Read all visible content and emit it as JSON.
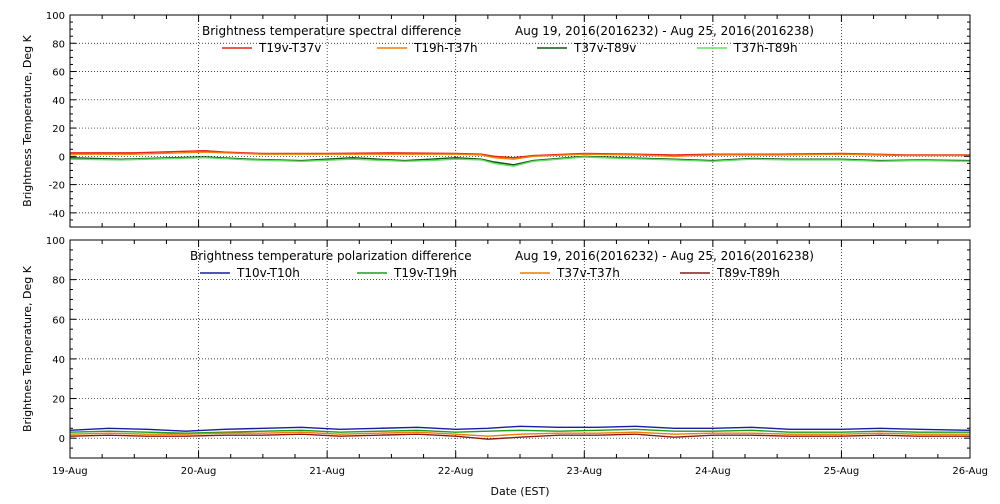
{
  "chart_data": [
    {
      "type": "line",
      "title": "Brightness temperature spectral difference",
      "subtitle": "Aug 19, 2016(2016232) - Aug 25, 2016(2016238)",
      "ylabel": "Brightness Temperature, Deg K",
      "xlabel": "",
      "ylim": [
        -50,
        100
      ],
      "yticks": [
        -40,
        -20,
        0,
        20,
        40,
        60,
        80,
        100
      ],
      "xlim": [
        0,
        7
      ],
      "grid": true,
      "legend": "top",
      "x_ticks": [
        0,
        1,
        2,
        3,
        4,
        5,
        6,
        7
      ],
      "x_tick_labels": [
        "",
        "",
        "",
        "",
        "",
        "",
        "",
        ""
      ],
      "series": [
        {
          "name": "T19v-T37v",
          "color": "#e8221b",
          "x": [
            0,
            0.5,
            1.05,
            1.2,
            1.5,
            2.0,
            2.5,
            3.0,
            3.2,
            3.3,
            3.45,
            3.6,
            4.0,
            4.4,
            4.7,
            5.0,
            5.5,
            6.0,
            6.5,
            7.0
          ],
          "y": [
            2.5,
            2.5,
            4,
            3,
            2,
            2,
            2.5,
            2,
            1.5,
            0,
            -1,
            0.5,
            2,
            1.5,
            1,
            1.5,
            1.5,
            2,
            1,
            1
          ]
        },
        {
          "name": "T19h-T37h",
          "color": "#f07d00",
          "x": [
            0,
            0.5,
            1.05,
            1.5,
            2.0,
            2.5,
            3.0,
            3.2,
            3.3,
            3.45,
            3.6,
            4.0,
            4.4,
            4.7,
            5.0,
            5.5,
            6.0,
            6.5,
            7.0
          ],
          "y": [
            1.5,
            1.5,
            3,
            1.5,
            1.5,
            1.5,
            1.5,
            1,
            -1,
            -2,
            0,
            1.5,
            1,
            0,
            1,
            1,
            1.5,
            0.5,
            0.5
          ]
        },
        {
          "name": "T37v-T89v",
          "color": "#0a5a0a",
          "x": [
            0,
            0.4,
            0.8,
            1.05,
            1.4,
            1.8,
            2.2,
            2.6,
            2.8,
            3.0,
            3.2,
            3.3,
            3.45,
            3.6,
            4.0,
            4.3,
            4.7,
            5.0,
            5.3,
            5.6,
            6.0,
            6.3,
            6.6,
            7.0
          ],
          "y": [
            -1,
            -2,
            -1,
            -0.5,
            -2,
            -3,
            -1,
            -3,
            -2,
            -1,
            -2,
            -4,
            -6,
            -3,
            0,
            -1,
            -2,
            -3,
            -1.5,
            -2,
            -2,
            -3,
            -2.5,
            -3
          ]
        },
        {
          "name": "T37h-T89h",
          "color": "#66dd66",
          "x": [
            0,
            0.4,
            0.8,
            1.05,
            1.4,
            1.8,
            2.2,
            2.6,
            2.8,
            3.0,
            3.2,
            3.3,
            3.45,
            3.6,
            4.0,
            4.3,
            4.7,
            5.0,
            5.3,
            5.6,
            6.0,
            6.3,
            6.6,
            7.0
          ],
          "y": [
            -2,
            -2.5,
            -1.5,
            -1,
            -2.5,
            -3.5,
            -2,
            -3.5,
            -3,
            -2,
            -2.5,
            -5,
            -7,
            -3.5,
            -0.5,
            -1.5,
            -2.5,
            -3.5,
            -2,
            -2.5,
            -2.5,
            -3.5,
            -3,
            -3.5
          ]
        }
      ]
    },
    {
      "type": "line",
      "title": "Brightness temperature polarization difference",
      "subtitle": "Aug 19, 2016(2016232) - Aug 25, 2016(2016238)",
      "ylabel": "Brightnes Temperature, Deg K",
      "xlabel": "Date (EST)",
      "ylim": [
        -10,
        100
      ],
      "yticks": [
        0,
        20,
        40,
        60,
        80,
        100
      ],
      "xlim": [
        0,
        7
      ],
      "grid": true,
      "legend": "top",
      "x_ticks": [
        0,
        1,
        2,
        3,
        4,
        5,
        6,
        7
      ],
      "x_tick_labels": [
        "19-Aug",
        "20-Aug",
        "21-Aug",
        "22-Aug",
        "23-Aug",
        "24-Aug",
        "25-Aug",
        "26-Aug"
      ],
      "series": [
        {
          "name": "T10v-T10h",
          "color": "#1b1ba8",
          "x": [
            0,
            0.3,
            0.6,
            0.9,
            1.2,
            1.5,
            1.8,
            2.1,
            2.4,
            2.7,
            3.0,
            3.25,
            3.5,
            3.8,
            4.1,
            4.4,
            4.7,
            5.0,
            5.3,
            5.6,
            6.0,
            6.3,
            6.6,
            7.0
          ],
          "y": [
            4,
            5,
            4.5,
            3.5,
            4.5,
            5,
            5.5,
            4.5,
            5,
            5.5,
            4.5,
            5,
            6,
            5.5,
            5.5,
            6,
            5,
            5,
            5.5,
            4.5,
            4.5,
            5,
            4.5,
            4
          ]
        },
        {
          "name": "T19v-T19h",
          "color": "#1e9e1e",
          "x": [
            0,
            0.3,
            0.6,
            0.9,
            1.2,
            1.5,
            1.8,
            2.1,
            2.4,
            2.7,
            3.0,
            3.25,
            3.5,
            3.8,
            4.1,
            4.4,
            4.7,
            5.0,
            5.3,
            5.6,
            6.0,
            6.3,
            6.6,
            7.0
          ],
          "y": [
            3,
            3.5,
            3,
            2.5,
            3,
            3.5,
            4,
            3,
            3.5,
            4,
            3,
            3.5,
            4,
            3.5,
            4,
            4.5,
            3.5,
            3.5,
            4,
            3,
            3,
            3.5,
            3,
            3
          ]
        },
        {
          "name": "T37v-T37h",
          "color": "#f07d00",
          "x": [
            0,
            0.3,
            0.6,
            0.9,
            1.2,
            1.5,
            1.8,
            2.1,
            2.4,
            2.7,
            3.0,
            3.25,
            3.5,
            3.8,
            4.1,
            4.4,
            4.7,
            5.0,
            5.3,
            5.6,
            6.0,
            6.3,
            6.6,
            7.0
          ],
          "y": [
            2,
            2.5,
            2,
            2,
            2.5,
            2.5,
            3,
            2,
            2.5,
            3,
            2,
            1,
            2,
            2.5,
            2.5,
            3,
            2,
            2.5,
            2.5,
            2,
            2,
            2.5,
            2,
            2
          ]
        },
        {
          "name": "T89v-T89h",
          "color": "#8b1a1a",
          "x": [
            0,
            0.3,
            0.6,
            0.9,
            1.2,
            1.5,
            1.8,
            2.1,
            2.4,
            2.7,
            3.0,
            3.25,
            3.5,
            3.8,
            4.1,
            4.4,
            4.7,
            5.0,
            5.3,
            5.6,
            6.0,
            6.3,
            6.6,
            7.0
          ],
          "y": [
            1,
            1.5,
            1,
            1,
            1.5,
            1.5,
            2,
            1,
            1.5,
            2,
            1,
            -0.5,
            0.5,
            1.5,
            1.5,
            2,
            0.5,
            1.5,
            1.5,
            1,
            1,
            1.5,
            1,
            1
          ]
        }
      ]
    }
  ]
}
